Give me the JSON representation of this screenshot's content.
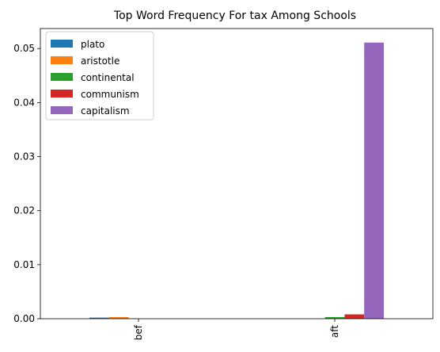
{
  "chart_data": {
    "type": "bar",
    "title": "Top Word Frequency For tax Among Schools",
    "xlabel": "",
    "ylabel": "",
    "categories": [
      "bef",
      "aft"
    ],
    "ylim": [
      0,
      0.0537
    ],
    "yticks": [
      0.0,
      0.01,
      0.02,
      0.03,
      0.04,
      0.05
    ],
    "ytick_labels": [
      "0.00",
      "0.01",
      "0.02",
      "0.03",
      "0.04",
      "0.05"
    ],
    "legend_position": "top-left",
    "grid": false,
    "series": [
      {
        "name": "plato",
        "color": "#1f77b4",
        "values": [
          0.0002,
          0.0
        ]
      },
      {
        "name": "aristotle",
        "color": "#ff7f0e",
        "values": [
          0.0003,
          0.0
        ]
      },
      {
        "name": "continental",
        "color": "#2ca02c",
        "values": [
          0.0,
          0.0003
        ]
      },
      {
        "name": "communism",
        "color": "#d62728",
        "values": [
          0.0,
          0.0008
        ]
      },
      {
        "name": "capitalism",
        "color": "#9467bd",
        "values": [
          0.0,
          0.0511
        ]
      }
    ]
  }
}
